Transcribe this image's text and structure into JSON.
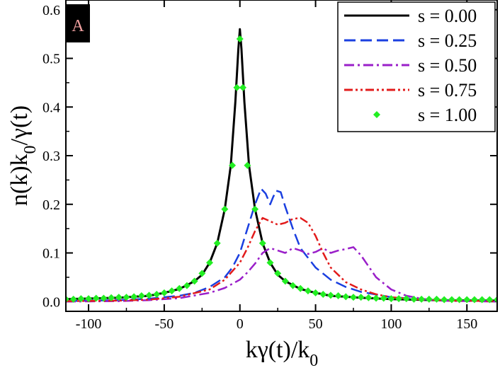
{
  "chart_data": {
    "type": "line",
    "panel_label": "A",
    "xlabel": "kγ(t)/k",
    "xlabel_sub": "0",
    "ylabel": "n(k)k",
    "ylabel_sub": "0",
    "ylabel_tail": "/γ(t)",
    "xlim": [
      -115,
      170
    ],
    "ylim": [
      -0.02,
      0.62
    ],
    "xticks": [
      -100,
      -50,
      0,
      50,
      100,
      150
    ],
    "xtick_labels": [
      "-100",
      "-50",
      "0",
      "50",
      "100",
      "150"
    ],
    "yticks": [
      0.0,
      0.1,
      0.2,
      0.3,
      0.4,
      0.5,
      0.6
    ],
    "ytick_labels": [
      "0.0",
      "0.1",
      "0.2",
      "0.3",
      "0.4",
      "0.5",
      "0.6"
    ],
    "series": [
      {
        "name": "s = 0.00",
        "color": "#000000",
        "style": "solid",
        "x": [
          -115,
          -80,
          -60,
          -50,
          -40,
          -30,
          -25,
          -20,
          -15,
          -10,
          -6,
          -3,
          -1,
          0,
          1,
          3,
          6,
          10,
          15,
          20,
          25,
          30,
          40,
          50,
          60,
          80,
          100,
          130,
          170
        ],
        "y": [
          0.005,
          0.008,
          0.012,
          0.018,
          0.026,
          0.042,
          0.055,
          0.08,
          0.12,
          0.19,
          0.28,
          0.41,
          0.52,
          0.56,
          0.52,
          0.41,
          0.28,
          0.19,
          0.12,
          0.08,
          0.055,
          0.042,
          0.026,
          0.018,
          0.012,
          0.008,
          0.005,
          0.003,
          0.002
        ]
      },
      {
        "name": "s = 0.25",
        "color": "#1a3fe0",
        "style": "dashed",
        "x": [
          -115,
          -80,
          -60,
          -40,
          -30,
          -20,
          -10,
          -5,
          0,
          5,
          10,
          14,
          17,
          20,
          22,
          24,
          27,
          30,
          35,
          40,
          50,
          60,
          70,
          80,
          100,
          130,
          170
        ],
        "y": [
          0.001,
          0.003,
          0.006,
          0.012,
          0.018,
          0.03,
          0.05,
          0.07,
          0.1,
          0.15,
          0.2,
          0.232,
          0.222,
          0.2,
          0.215,
          0.228,
          0.225,
          0.195,
          0.15,
          0.11,
          0.07,
          0.045,
          0.03,
          0.02,
          0.009,
          0.003,
          0.001
        ]
      },
      {
        "name": "s = 0.50",
        "color": "#9a1fc9",
        "style": "dashdot",
        "x": [
          -115,
          -80,
          -60,
          -40,
          -20,
          -10,
          0,
          5,
          10,
          15,
          20,
          25,
          30,
          35,
          40,
          45,
          50,
          55,
          60,
          65,
          70,
          75,
          80,
          90,
          100,
          110,
          120,
          130,
          170
        ],
        "y": [
          0.0,
          0.001,
          0.003,
          0.007,
          0.018,
          0.028,
          0.045,
          0.06,
          0.078,
          0.1,
          0.11,
          0.105,
          0.1,
          0.11,
          0.105,
          0.098,
          0.102,
          0.11,
          0.1,
          0.105,
          0.108,
          0.112,
          0.095,
          0.05,
          0.025,
          0.012,
          0.006,
          0.002,
          0.0
        ]
      },
      {
        "name": "s = 0.75",
        "color": "#e21b1b",
        "style": "dashdotdot",
        "x": [
          -115,
          -80,
          -60,
          -40,
          -20,
          -10,
          0,
          5,
          10,
          15,
          20,
          25,
          30,
          35,
          40,
          45,
          50,
          55,
          60,
          70,
          80,
          90,
          100,
          120,
          140,
          170
        ],
        "y": [
          0.001,
          0.002,
          0.004,
          0.01,
          0.025,
          0.045,
          0.08,
          0.11,
          0.145,
          0.172,
          0.165,
          0.158,
          0.162,
          0.17,
          0.172,
          0.162,
          0.135,
          0.1,
          0.07,
          0.04,
          0.025,
          0.015,
          0.009,
          0.004,
          0.002,
          0.001
        ]
      },
      {
        "name": "s = 1.00",
        "color": "#22ee22",
        "style": "markers",
        "x": [
          -115,
          -110,
          -105,
          -100,
          -95,
          -90,
          -85,
          -80,
          -75,
          -70,
          -65,
          -60,
          -55,
          -50,
          -45,
          -40,
          -35,
          -30,
          -25,
          -20,
          -15,
          -10,
          -5,
          -2,
          0,
          2,
          5,
          10,
          15,
          20,
          25,
          30,
          35,
          40,
          45,
          50,
          55,
          60,
          65,
          70,
          75,
          80,
          85,
          90,
          95,
          100,
          105,
          110,
          115,
          120,
          125,
          130,
          135,
          140,
          145,
          150,
          155,
          160,
          165,
          170
        ],
        "y": [
          0.005,
          0.005,
          0.006,
          0.006,
          0.007,
          0.007,
          0.008,
          0.009,
          0.009,
          0.01,
          0.012,
          0.013,
          0.015,
          0.018,
          0.022,
          0.027,
          0.033,
          0.042,
          0.058,
          0.08,
          0.12,
          0.19,
          0.28,
          0.44,
          0.54,
          0.44,
          0.28,
          0.19,
          0.12,
          0.08,
          0.058,
          0.042,
          0.033,
          0.027,
          0.022,
          0.018,
          0.015,
          0.013,
          0.012,
          0.01,
          0.009,
          0.009,
          0.008,
          0.007,
          0.007,
          0.006,
          0.006,
          0.006,
          0.005,
          0.005,
          0.005,
          0.005,
          0.004,
          0.004,
          0.004,
          0.004,
          0.004,
          0.004,
          0.004,
          0.004
        ]
      }
    ]
  }
}
